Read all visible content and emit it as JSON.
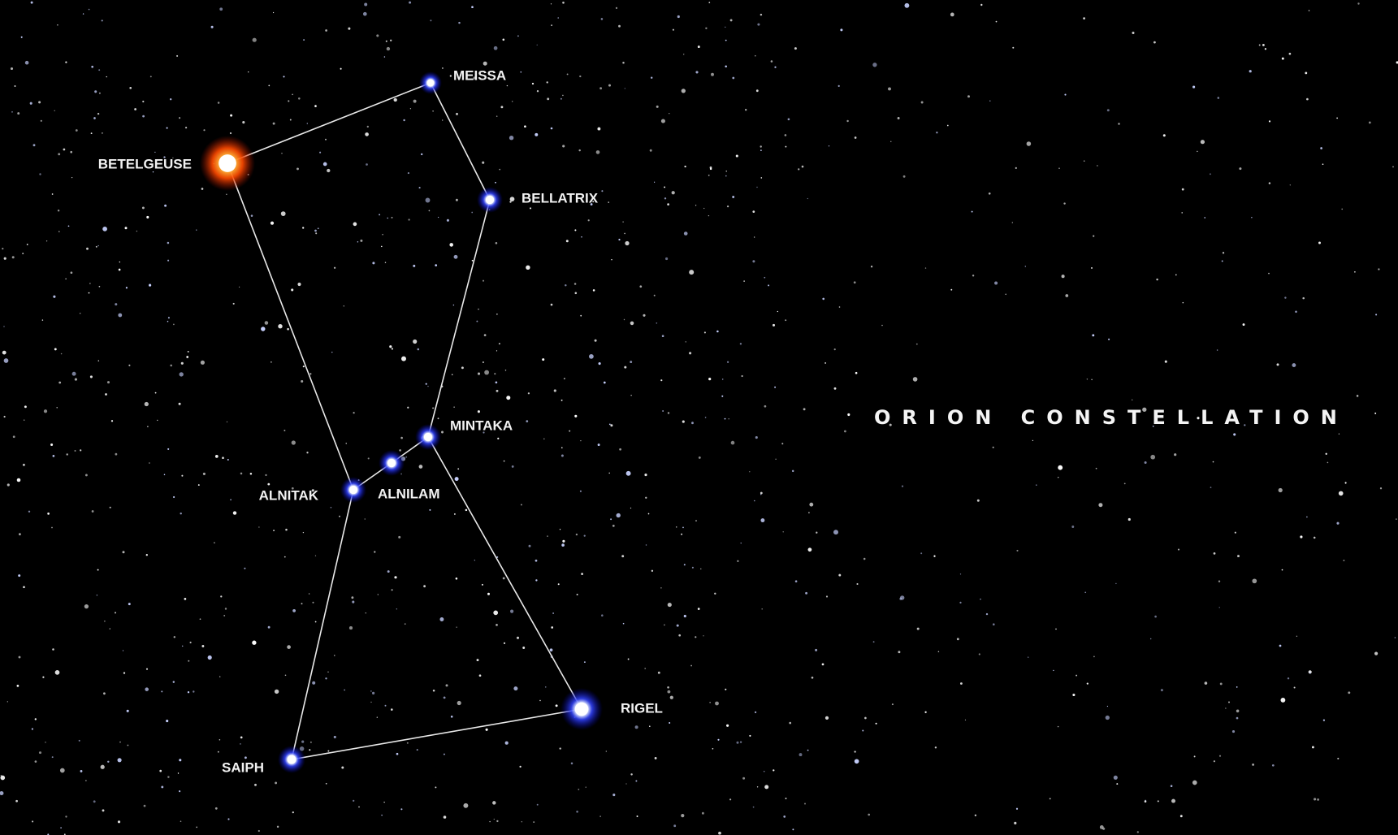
{
  "title": "ORION CONSTELLATION",
  "stars": [
    {
      "label": "MEISSA"
    },
    {
      "label": "BETELGEUSE"
    },
    {
      "label": "BELLATRIX"
    },
    {
      "label": "MINTAKA"
    },
    {
      "label": "ALNILAM"
    },
    {
      "label": "ALNITAK"
    },
    {
      "label": "RIGEL"
    },
    {
      "label": "SAIPH"
    }
  ]
}
